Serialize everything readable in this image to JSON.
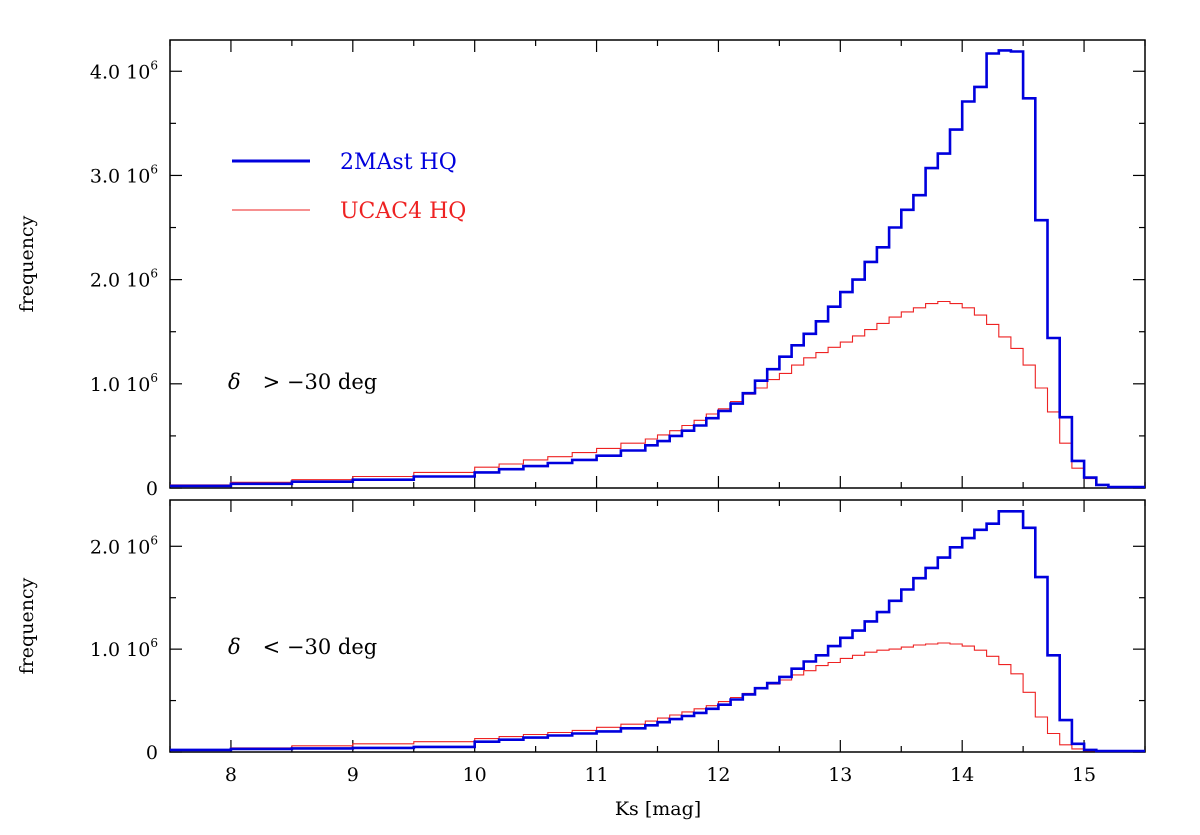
{
  "chart_data": {
    "type": "line",
    "xlabel": "Ks [mag]",
    "x_ticks": [
      "8",
      "9",
      "10",
      "11",
      "12",
      "13",
      "14",
      "15"
    ],
    "xlim": [
      7.5,
      15.5
    ],
    "legend": {
      "placement": "top-left of upper panel",
      "entries": [
        {
          "label": "2MAst HQ",
          "color": "#0000dd"
        },
        {
          "label": "UCAC4 HQ",
          "color": "#ee2222"
        }
      ]
    },
    "panels": [
      {
        "name": "top",
        "ylabel": "frequency",
        "annotation": {
          "symbol": "δ",
          "text": ">  −30 deg"
        },
        "ylim": [
          0,
          4300000
        ],
        "y_ticks": [
          {
            "value": 0,
            "label": "0",
            "exp": ""
          },
          {
            "value": 1000000,
            "label": "1.0  10",
            "exp": "6"
          },
          {
            "value": 2000000,
            "label": "2.0  10",
            "exp": "6"
          },
          {
            "value": 3000000,
            "label": "3.0  10",
            "exp": "6"
          },
          {
            "value": 4000000,
            "label": "4.0  10",
            "exp": "6"
          }
        ],
        "series": [
          {
            "name": "2MAst HQ",
            "color": "#0000dd",
            "step": true,
            "x": [
              7.5,
              8.0,
              8.5,
              9.0,
              9.5,
              10.0,
              10.2,
              10.4,
              10.6,
              10.8,
              11.0,
              11.2,
              11.4,
              11.5,
              11.6,
              11.7,
              11.8,
              11.9,
              12.0,
              12.1,
              12.2,
              12.3,
              12.4,
              12.5,
              12.6,
              12.7,
              12.8,
              12.9,
              13.0,
              13.1,
              13.2,
              13.3,
              13.4,
              13.5,
              13.6,
              13.7,
              13.8,
              13.9,
              14.0,
              14.1,
              14.2,
              14.3,
              14.4,
              14.5,
              14.6,
              14.7,
              14.8,
              14.9,
              15.0,
              15.1,
              15.2,
              15.3,
              15.5
            ],
            "y": [
              20000,
              40000,
              60000,
              80000,
              110000,
              150000,
              180000,
              210000,
              240000,
              270000,
              310000,
              360000,
              410000,
              450000,
              500000,
              550000,
              600000,
              670000,
              740000,
              810000,
              910000,
              1030000,
              1140000,
              1260000,
              1370000,
              1480000,
              1600000,
              1740000,
              1880000,
              2000000,
              2170000,
              2310000,
              2500000,
              2670000,
              2810000,
              3070000,
              3210000,
              3440000,
              3710000,
              3850000,
              4170000,
              4200000,
              4190000,
              3740000,
              2570000,
              1440000,
              680000,
              260000,
              100000,
              30000,
              10000,
              10000,
              10000
            ]
          },
          {
            "name": "UCAC4 HQ",
            "color": "#ee2222",
            "step": true,
            "x": [
              7.5,
              8.0,
              8.5,
              9.0,
              9.5,
              10.0,
              10.2,
              10.4,
              10.6,
              10.8,
              11.0,
              11.2,
              11.4,
              11.5,
              11.6,
              11.7,
              11.8,
              11.9,
              12.0,
              12.1,
              12.2,
              12.3,
              12.4,
              12.5,
              12.6,
              12.7,
              12.8,
              12.9,
              13.0,
              13.1,
              13.2,
              13.3,
              13.4,
              13.5,
              13.6,
              13.7,
              13.8,
              13.9,
              14.0,
              14.1,
              14.2,
              14.3,
              14.4,
              14.5,
              14.6,
              14.7,
              14.8,
              14.9,
              15.0,
              15.1,
              15.2,
              15.3,
              15.5
            ],
            "y": [
              30000,
              55000,
              80000,
              110000,
              150000,
              200000,
              230000,
              270000,
              300000,
              340000,
              380000,
              430000,
              470000,
              510000,
              550000,
              600000,
              650000,
              710000,
              760000,
              830000,
              900000,
              960000,
              1040000,
              1100000,
              1180000,
              1250000,
              1300000,
              1350000,
              1400000,
              1460000,
              1520000,
              1580000,
              1640000,
              1690000,
              1730000,
              1770000,
              1790000,
              1770000,
              1730000,
              1660000,
              1570000,
              1450000,
              1340000,
              1180000,
              960000,
              730000,
              430000,
              190000,
              90000,
              30000,
              10000,
              10000,
              10000
            ]
          }
        ]
      },
      {
        "name": "bottom",
        "ylabel": "frequency",
        "annotation": {
          "symbol": "δ",
          "text": "<  −30 deg"
        },
        "ylim": [
          0,
          2450000
        ],
        "y_ticks": [
          {
            "value": 0,
            "label": "0",
            "exp": ""
          },
          {
            "value": 1000000,
            "label": "1.0  10",
            "exp": "6"
          },
          {
            "value": 2000000,
            "label": "2.0  10",
            "exp": "6"
          }
        ],
        "series": [
          {
            "name": "2MAst HQ",
            "color": "#0000dd",
            "step": true,
            "x": [
              7.5,
              8.0,
              8.5,
              9.0,
              9.5,
              10.0,
              10.2,
              10.4,
              10.6,
              10.8,
              11.0,
              11.2,
              11.4,
              11.5,
              11.6,
              11.7,
              11.8,
              11.9,
              12.0,
              12.1,
              12.2,
              12.3,
              12.4,
              12.5,
              12.6,
              12.7,
              12.8,
              12.9,
              13.0,
              13.1,
              13.2,
              13.3,
              13.4,
              13.5,
              13.6,
              13.7,
              13.8,
              13.9,
              14.0,
              14.1,
              14.2,
              14.3,
              14.4,
              14.5,
              14.6,
              14.7,
              14.8,
              14.9,
              15.0,
              15.1,
              15.2,
              15.3,
              15.5
            ],
            "y": [
              20000,
              30000,
              35000,
              40000,
              50000,
              100000,
              120000,
              140000,
              160000,
              180000,
              200000,
              230000,
              260000,
              290000,
              320000,
              350000,
              380000,
              420000,
              460000,
              510000,
              560000,
              620000,
              670000,
              730000,
              810000,
              880000,
              940000,
              1030000,
              1110000,
              1180000,
              1270000,
              1360000,
              1470000,
              1580000,
              1690000,
              1790000,
              1890000,
              1990000,
              2080000,
              2160000,
              2220000,
              2340000,
              2340000,
              2180000,
              1700000,
              940000,
              310000,
              80000,
              20000,
              10000,
              10000,
              10000,
              10000
            ]
          },
          {
            "name": "UCAC4 HQ",
            "color": "#ee2222",
            "step": true,
            "x": [
              7.5,
              8.0,
              8.5,
              9.0,
              9.5,
              10.0,
              10.2,
              10.4,
              10.6,
              10.8,
              11.0,
              11.2,
              11.4,
              11.5,
              11.6,
              11.7,
              11.8,
              11.9,
              12.0,
              12.1,
              12.2,
              12.3,
              12.4,
              12.5,
              12.6,
              12.7,
              12.8,
              12.9,
              13.0,
              13.1,
              13.2,
              13.3,
              13.4,
              13.5,
              13.6,
              13.7,
              13.8,
              13.9,
              14.0,
              14.1,
              14.2,
              14.3,
              14.4,
              14.5,
              14.6,
              14.7,
              14.8,
              14.9,
              15.0,
              15.1,
              15.2,
              15.3,
              15.5
            ],
            "y": [
              20000,
              40000,
              60000,
              80000,
              100000,
              130000,
              150000,
              170000,
              190000,
              210000,
              240000,
              270000,
              300000,
              330000,
              360000,
              390000,
              420000,
              450000,
              490000,
              530000,
              570000,
              620000,
              660000,
              700000,
              750000,
              790000,
              840000,
              870000,
              910000,
              940000,
              970000,
              990000,
              1000000,
              1020000,
              1040000,
              1050000,
              1060000,
              1050000,
              1030000,
              990000,
              930000,
              850000,
              760000,
              580000,
              340000,
              180000,
              70000,
              30000,
              10000,
              10000,
              10000,
              10000,
              10000
            ]
          }
        ]
      }
    ]
  }
}
